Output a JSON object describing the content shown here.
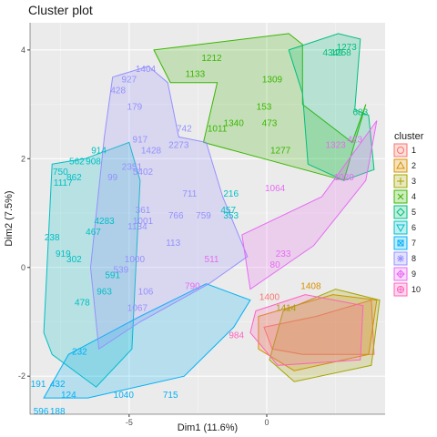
{
  "chart_data": {
    "type": "scatter",
    "title": "Cluster plot",
    "xlabel": "Dim1 (11.6%)",
    "ylabel": "Dim2 (7.5%)",
    "xlim": [
      -8.6,
      4.3
    ],
    "ylim": [
      -2.7,
      4.5
    ],
    "x_ticks": [
      -5,
      0
    ],
    "y_ticks": [
      -2,
      0,
      2,
      4
    ],
    "grid": true,
    "legend_title": "cluster",
    "legend_position": "right",
    "colors": {
      "1": "#F8766D",
      "2": "#D89000",
      "3": "#A3A500",
      "4": "#39B600",
      "5": "#00BF7D",
      "6": "#00BFC4",
      "7": "#00B0F6",
      "8": "#9590FF",
      "9": "#E76BF3",
      "10": "#FF62BC"
    },
    "series": [
      {
        "name": "1",
        "hull": [
          [
            -0.1,
            -1.1
          ],
          [
            1.8,
            -0.9
          ],
          [
            3.8,
            -0.6
          ],
          [
            3.9,
            -1.6
          ],
          [
            1.3,
            -1.6
          ],
          [
            0.2,
            -1.5
          ]
        ]
      },
      {
        "name": "2",
        "hull": [
          [
            -0.3,
            -0.9
          ],
          [
            2.4,
            -0.5
          ],
          [
            4.0,
            -0.6
          ],
          [
            3.7,
            -1.6
          ],
          [
            1.0,
            -1.9
          ],
          [
            -0.3,
            -1.5
          ]
        ]
      },
      {
        "name": "3",
        "hull": [
          [
            0.6,
            -0.8
          ],
          [
            2.5,
            -0.4
          ],
          [
            4.1,
            -0.6
          ],
          [
            3.8,
            -1.8
          ],
          [
            1.0,
            -2.1
          ],
          [
            0.1,
            -1.7
          ]
        ]
      },
      {
        "name": "4",
        "hull": [
          [
            -4.1,
            4.0
          ],
          [
            0.8,
            4.3
          ],
          [
            1.3,
            4.1
          ],
          [
            1.3,
            3.0
          ],
          [
            3.1,
            2.3
          ],
          [
            3.6,
            3.0
          ],
          [
            2.8,
            1.6
          ],
          [
            -2.3,
            2.3
          ],
          [
            -1.8,
            3.4
          ],
          [
            -3.5,
            3.4
          ]
        ]
      },
      {
        "name": "5",
        "hull": [
          [
            0.8,
            4.0
          ],
          [
            2.6,
            4.3
          ],
          [
            3.4,
            4.2
          ],
          [
            3.2,
            2.9
          ],
          [
            3.7,
            2.8
          ],
          [
            3.9,
            1.8
          ],
          [
            2.8,
            1.6
          ],
          [
            1.5,
            1.9
          ],
          [
            1.3,
            3.2
          ]
        ]
      },
      {
        "name": "6",
        "hull": [
          [
            -7.8,
            1.9
          ],
          [
            -6.6,
            2.0
          ],
          [
            -5.0,
            2.3
          ],
          [
            -4.6,
            1.6
          ],
          [
            -4.9,
            -1.5
          ],
          [
            -6.2,
            -2.2
          ],
          [
            -7.8,
            -1.6
          ],
          [
            -8.1,
            -1.2
          ]
        ]
      },
      {
        "name": "7",
        "hull": [
          [
            -8.1,
            -2.4
          ],
          [
            -6.5,
            -2.4
          ],
          [
            -3.0,
            -2.0
          ],
          [
            -1.2,
            -1.1
          ],
          [
            -0.6,
            -0.6
          ],
          [
            -2.2,
            -0.3
          ],
          [
            -4.6,
            -0.9
          ],
          [
            -7.2,
            -1.6
          ]
        ]
      },
      {
        "name": "8",
        "hull": [
          [
            -5.6,
            3.5
          ],
          [
            -4.3,
            3.7
          ],
          [
            -3.6,
            3.4
          ],
          [
            -3.2,
            2.4
          ],
          [
            -2.2,
            2.3
          ],
          [
            -1.6,
            1.3
          ],
          [
            -0.7,
            0.2
          ],
          [
            -2.1,
            -0.3
          ],
          [
            -4.6,
            -1.0
          ],
          [
            -6.1,
            -1.5
          ],
          [
            -6.4,
            0.0
          ],
          [
            -5.9,
            2.4
          ]
        ]
      },
      {
        "name": "9",
        "hull": [
          [
            -0.9,
            0.6
          ],
          [
            2.0,
            1.3
          ],
          [
            4.0,
            2.7
          ],
          [
            3.6,
            1.6
          ],
          [
            1.7,
            0.4
          ],
          [
            -0.6,
            -0.4
          ]
        ]
      },
      {
        "name": "10",
        "hull": [
          [
            -0.4,
            -0.8
          ],
          [
            1.4,
            -0.5
          ],
          [
            3.5,
            -0.7
          ],
          [
            3.4,
            -1.7
          ],
          [
            0.4,
            -1.8
          ],
          [
            -0.6,
            -1.2
          ]
        ]
      }
    ]
  }
}
